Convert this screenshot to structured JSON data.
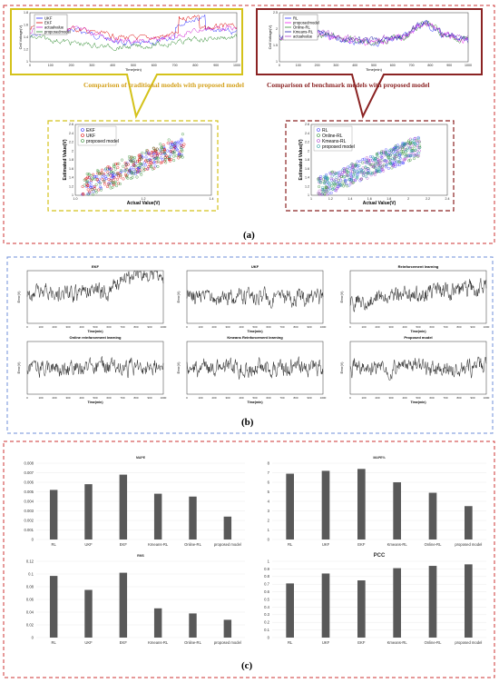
{
  "panel_labels": {
    "a": "(a)",
    "b": "(b)",
    "c": "(c)"
  },
  "callouts": {
    "left": "Comparison of traditional models with proposed model",
    "right": "Comparison of benchmark models with proposed model"
  },
  "colors": {
    "yellow_frame": "#d4c21a",
    "maroon_frame": "#8b2323",
    "red_dashed": "#cc3333",
    "blue_dashed": "#6f8fd8",
    "ukf": "#2a2aff",
    "ekf": "#dd0000",
    "actual": "#d020d0",
    "proposed": "#2e8b2e",
    "bar": "#595959"
  },
  "chart_data": [
    {
      "id": "a-left-timeseries",
      "type": "line",
      "ylabel": "Cell Voltage(V)",
      "xlabel": "Time(min)",
      "xlim": [
        0,
        1000
      ],
      "ylim": [
        1.0,
        1.8
      ],
      "xticks": [
        "0",
        "100",
        "200",
        "300",
        "400",
        "500",
        "600",
        "700",
        "800",
        "900",
        "1000"
      ],
      "yticks": [
        "1",
        "1.2",
        "1.4",
        "1.6",
        "1.8"
      ],
      "series": [
        {
          "name": "UKF",
          "base": 1.35
        },
        {
          "name": "EKF",
          "base": 1.45
        },
        {
          "name": "actualvalue",
          "base": 1.4
        },
        {
          "name": "proposedmodel",
          "base": 1.3
        }
      ]
    },
    {
      "id": "a-right-timeseries",
      "type": "line",
      "ylabel": "Cell Voltage(V)",
      "xlabel": "Time(min)",
      "xlim": [
        0,
        1000
      ],
      "ylim": [
        1.0,
        2.5
      ],
      "xticks": [
        "0",
        "100",
        "200",
        "300",
        "400",
        "500",
        "600",
        "700",
        "800",
        "900",
        "1000"
      ],
      "yticks": [
        "1",
        "1.5",
        "2",
        "2.5"
      ],
      "series": [
        {
          "name": "RL"
        },
        {
          "name": "proposedmodel"
        },
        {
          "name": "Online-RL"
        },
        {
          "name": "Kmeans-RL"
        },
        {
          "name": "actualvalue"
        }
      ]
    },
    {
      "id": "a-left-scatter",
      "type": "scatter",
      "xlabel": "Actual Value(V)",
      "ylabel": "Estimated Value(V)",
      "xlim": [
        0.9,
        1.5
      ],
      "ylim": [
        1.0,
        2.6
      ],
      "xticks": [
        "1.0",
        "1.2",
        "1.4"
      ],
      "yticks": [
        "1",
        "1.2",
        "1.4",
        "1.6",
        "1.8",
        "2",
        "2.2",
        "2.4",
        "2.6"
      ],
      "series": [
        {
          "name": "EKF"
        },
        {
          "name": "UKF"
        },
        {
          "name": "proposed model"
        }
      ]
    },
    {
      "id": "a-right-scatter",
      "type": "scatter",
      "xlabel": "Actual Value(V)",
      "ylabel": "Estimated Value(V)",
      "xlim": [
        1.0,
        2.5
      ],
      "ylim": [
        1.0,
        2.6
      ],
      "xticks": [
        "1",
        "1.2",
        "1.4",
        "1.6",
        "1.8",
        "2",
        "2.2",
        "2.4"
      ],
      "yticks": [
        "1",
        "1.2",
        "1.4",
        "1.6",
        "1.8",
        "2",
        "2.2",
        "2.4",
        "2.6"
      ],
      "series": [
        {
          "name": "RL"
        },
        {
          "name": "Online-RL"
        },
        {
          "name": "Kmeans-RL"
        },
        {
          "name": "proposed model"
        }
      ]
    },
    {
      "id": "b-errors",
      "type": "line",
      "xlabel": "Time(min)",
      "ylabel": "Error(V)",
      "xlim": [
        0,
        1000
      ],
      "xticks": [
        "0",
        "100",
        "200",
        "300",
        "400",
        "500",
        "600",
        "700",
        "800",
        "900",
        "1000"
      ],
      "panels": [
        {
          "title": "EKF"
        },
        {
          "title": "UKF"
        },
        {
          "title": "Reinforcement learning"
        },
        {
          "title": "Online reinforcement learning"
        },
        {
          "title": "Kmeans Reinforcement learning"
        },
        {
          "title": "Proposed model"
        }
      ]
    },
    {
      "id": "c-mape",
      "type": "bar",
      "title": "MAPE",
      "categories": [
        "RL",
        "UKF",
        "EKF",
        "Kmeans-RL",
        "Online-RL",
        "proposed model"
      ],
      "values": [
        0.0052,
        0.0058,
        0.0068,
        0.0048,
        0.0045,
        0.0024
      ],
      "ylim": [
        0,
        0.008
      ],
      "yticks": [
        "0",
        "0.001",
        "0.002",
        "0.003",
        "0.004",
        "0.005",
        "0.006",
        "0.007",
        "0.008"
      ]
    },
    {
      "id": "c-mape2",
      "type": "bar",
      "title": "MAPE%",
      "categories": [
        "RL",
        "UKF",
        "EKF",
        "Kmeans-RL",
        "Online-RL",
        "proposed model"
      ],
      "values": [
        6.9,
        7.2,
        7.4,
        6.0,
        4.9,
        3.5
      ],
      "ylim": [
        0,
        8
      ],
      "yticks": [
        "0",
        "1",
        "2",
        "3",
        "4",
        "5",
        "6",
        "7",
        "8"
      ]
    },
    {
      "id": "c-rms",
      "type": "bar",
      "title": "RMS",
      "categories": [
        "RL",
        "UKF",
        "EKF",
        "Kmeans-RL",
        "Online-RL",
        "proposed model"
      ],
      "values": [
        0.097,
        0.075,
        0.102,
        0.046,
        0.038,
        0.028
      ],
      "ylim": [
        0,
        0.12
      ],
      "yticks": [
        "0",
        "0.02",
        "0.04",
        "0.06",
        "0.08",
        "0.1",
        "0.12"
      ]
    },
    {
      "id": "c-pcc",
      "type": "bar",
      "title": "PCC",
      "categories": [
        "RL",
        "UKF",
        "EKF",
        "Kmeans-RL",
        "Online-RL",
        "proposed model"
      ],
      "values": [
        0.71,
        0.84,
        0.75,
        0.91,
        0.94,
        0.96
      ],
      "ylim": [
        0,
        1
      ],
      "yticks": [
        "0",
        "0.1",
        "0.2",
        "0.3",
        "0.4",
        "0.5",
        "0.6",
        "0.7",
        "0.8",
        "0.9",
        "1"
      ]
    }
  ]
}
